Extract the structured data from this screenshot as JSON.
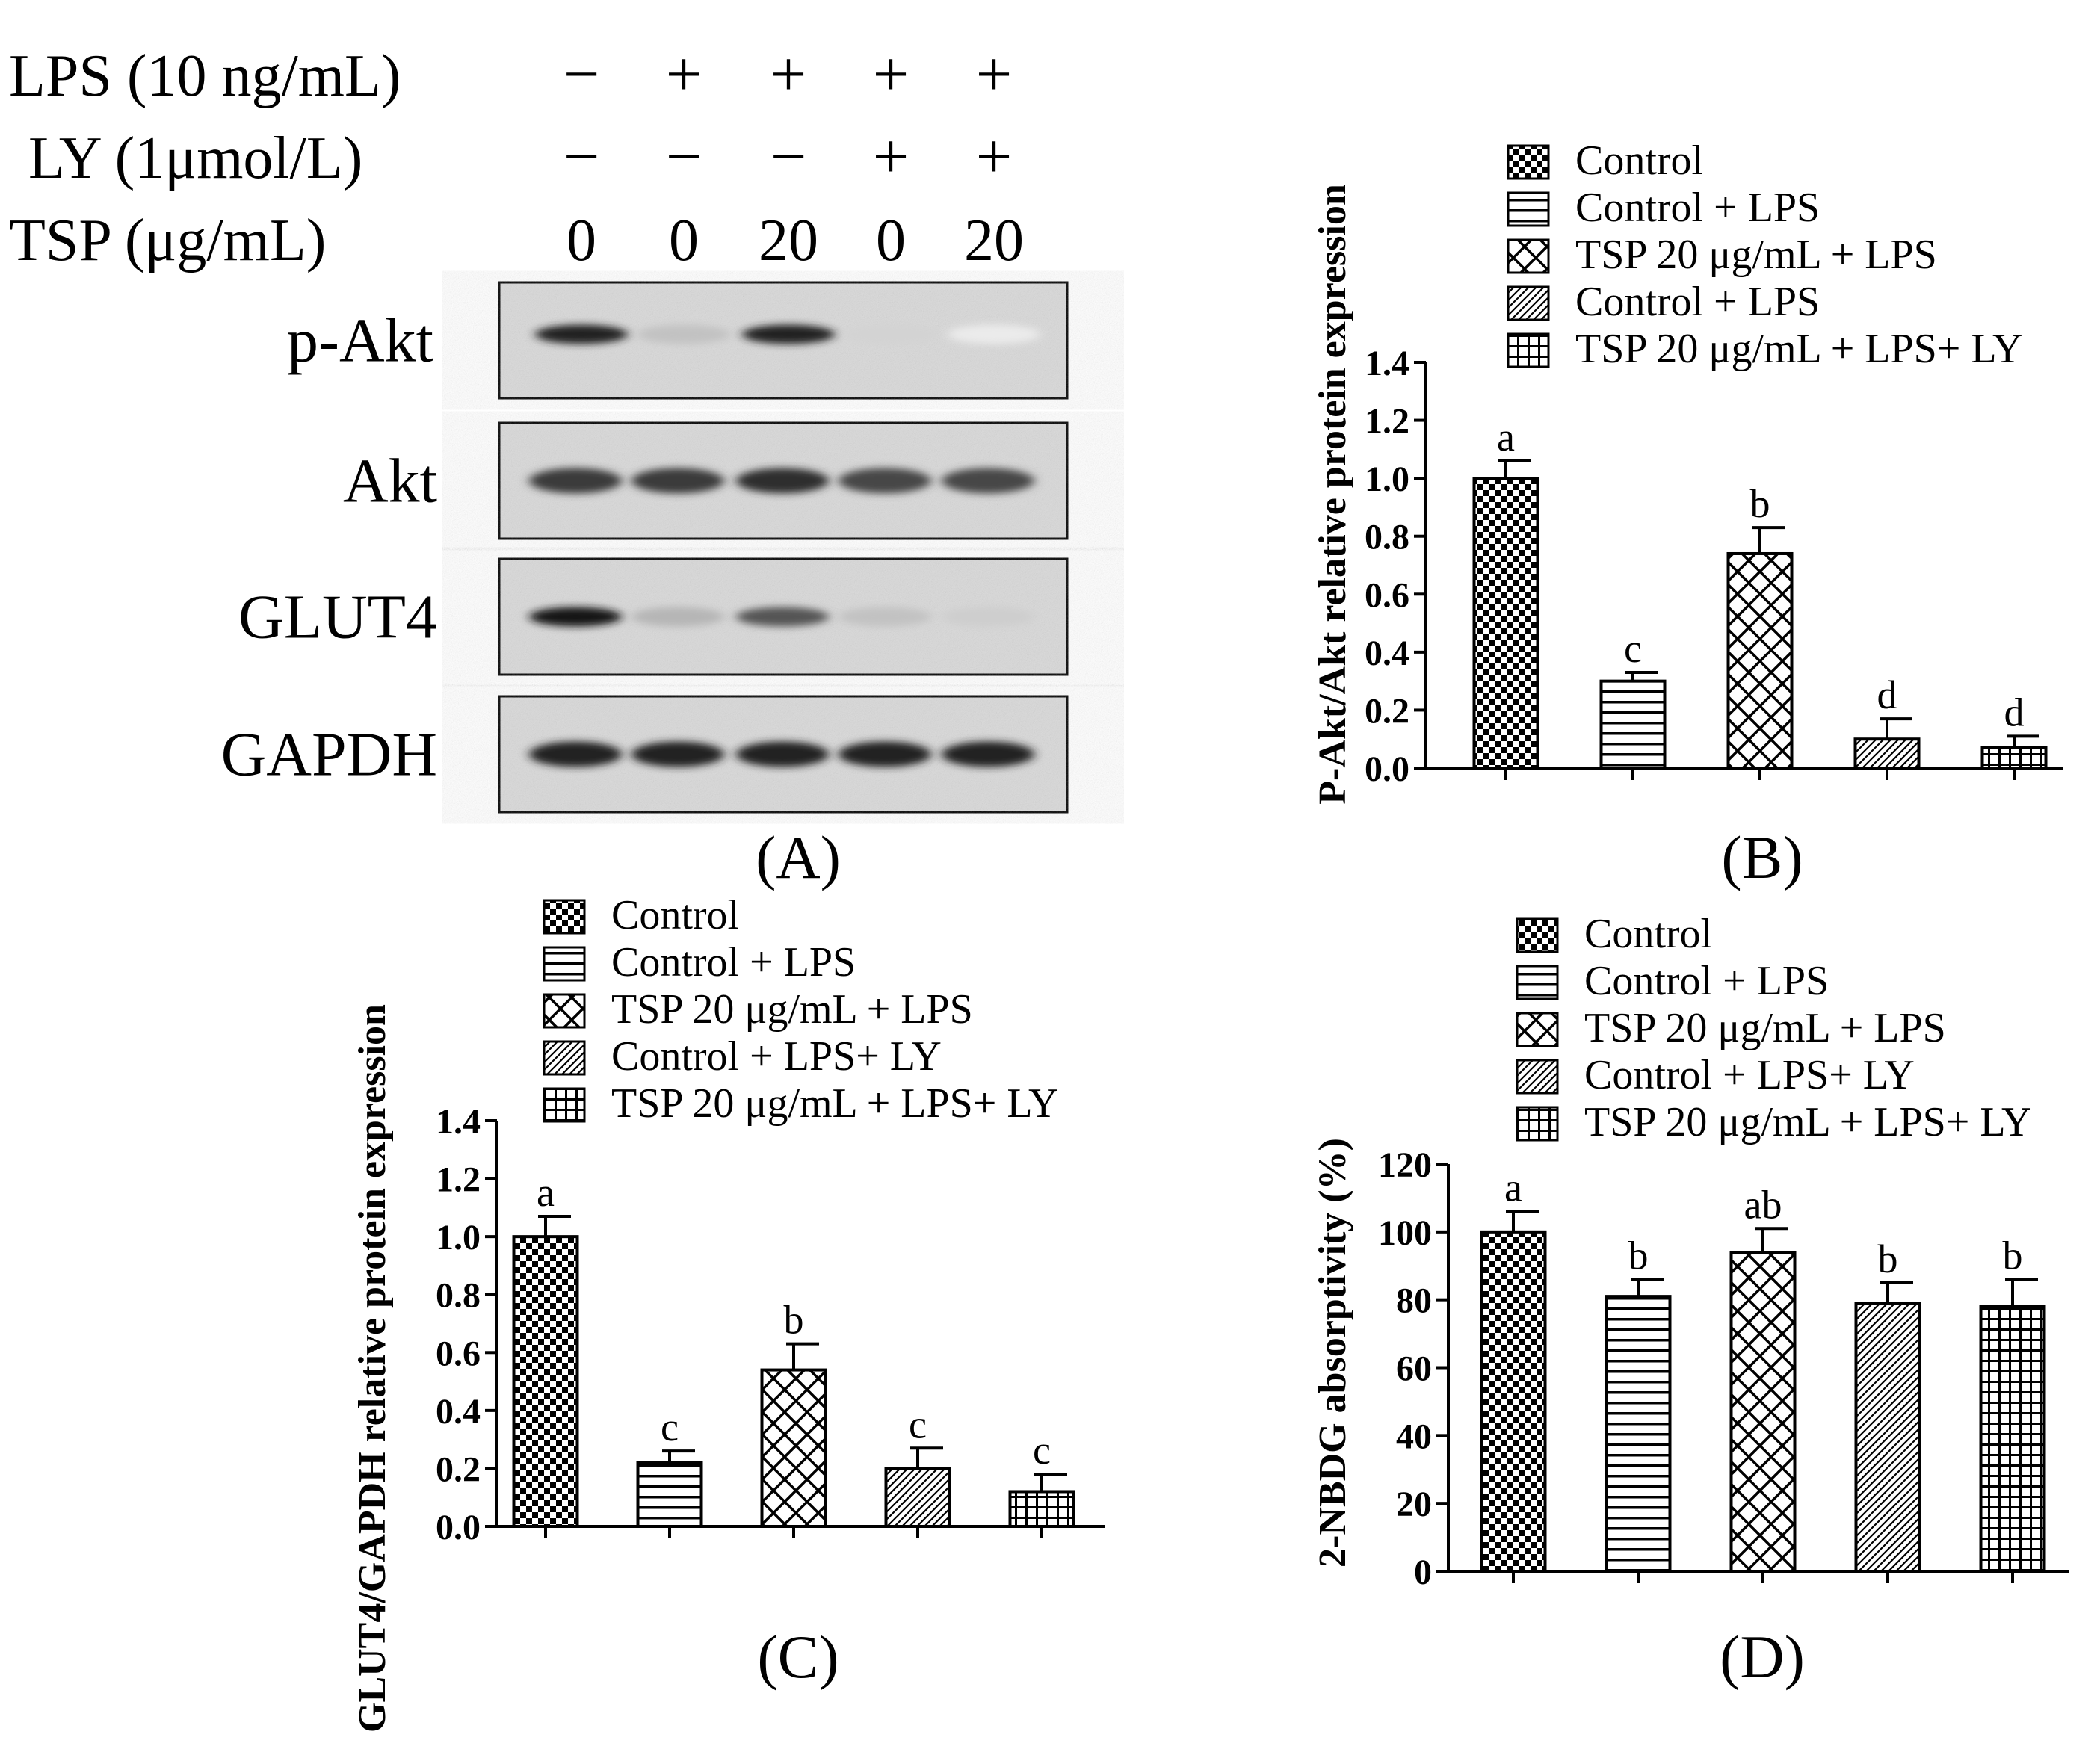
{
  "western_blot": {
    "panel_label": "(A)",
    "conditions": [
      {
        "label": "LPS (10 ng/mL)",
        "values": [
          "−",
          "+",
          "+",
          "+",
          "+"
        ]
      },
      {
        "label": "LY  (1μmol/L)",
        "values": [
          "−",
          "−",
          "−",
          "+",
          "+"
        ]
      },
      {
        "label": "TSP  (μg/mL)",
        "values": [
          "0",
          "0",
          "20",
          "0",
          "20"
        ]
      }
    ],
    "blots": [
      {
        "label": "p-Akt",
        "intensity": [
          0.9,
          0.25,
          0.9,
          0.18,
          0.08
        ]
      },
      {
        "label": "Akt",
        "intensity": [
          0.8,
          0.8,
          0.85,
          0.75,
          0.75
        ]
      },
      {
        "label": "GLUT4",
        "intensity": [
          0.95,
          0.3,
          0.7,
          0.25,
          0.2
        ]
      },
      {
        "label": "GAPDH",
        "intensity": [
          0.9,
          0.9,
          0.9,
          0.9,
          0.9
        ]
      }
    ]
  },
  "chart_data": [
    {
      "type": "bar",
      "panel_label": "(B)",
      "ylabel": "P-Akt/Akt relative protein expression",
      "xlabel": "",
      "ylim": [
        0,
        1.4
      ],
      "ytick_step": 0.2,
      "yticks": [
        "0.0",
        "0.2",
        "0.4",
        "0.6",
        "0.8",
        "1.0",
        "1.2",
        "1.4"
      ],
      "legend": [
        "Control",
        "Control + LPS",
        "TSP 20 μg/mL + LPS",
        "Control + LPS",
        "TSP 20 μg/mL + LPS+ LY"
      ],
      "values": [
        1.0,
        0.3,
        0.74,
        0.1,
        0.07
      ],
      "errors": [
        0.06,
        0.03,
        0.09,
        0.07,
        0.04
      ],
      "letters": [
        "a",
        "c",
        "b",
        "d",
        "d"
      ]
    },
    {
      "type": "bar",
      "panel_label": "(C)",
      "ylabel": "GLUT4/GAPDH relative protein expression",
      "xlabel": "",
      "ylim": [
        0,
        1.4
      ],
      "ytick_step": 0.2,
      "yticks": [
        "0.0",
        "0.2",
        "0.4",
        "0.6",
        "0.8",
        "1.0",
        "1.2",
        "1.4"
      ],
      "legend": [
        "Control",
        "Control + LPS",
        "TSP 20 μg/mL + LPS",
        "Control + LPS+ LY",
        "TSP 20 μg/mL + LPS+ LY"
      ],
      "values": [
        1.0,
        0.22,
        0.54,
        0.2,
        0.12
      ],
      "errors": [
        0.07,
        0.04,
        0.09,
        0.07,
        0.06
      ],
      "letters": [
        "a",
        "c",
        "b",
        "c",
        "c"
      ]
    },
    {
      "type": "bar",
      "panel_label": "(D)",
      "ylabel": "2-NBDG absorptivity (%)",
      "xlabel": "",
      "ylim": [
        0,
        120
      ],
      "ytick_step": 20,
      "yticks": [
        "0",
        "20",
        "40",
        "60",
        "80",
        "100",
        "120"
      ],
      "legend": [
        "Control",
        "Control + LPS",
        "TSP 20 μg/mL + LPS",
        "Control + LPS+ LY",
        "TSP 20 μg/mL + LPS+ LY"
      ],
      "values": [
        100,
        81,
        94,
        79,
        78
      ],
      "errors": [
        6,
        5,
        7,
        6,
        8
      ],
      "letters": [
        "a",
        "b",
        "ab",
        "b",
        "b"
      ]
    }
  ]
}
